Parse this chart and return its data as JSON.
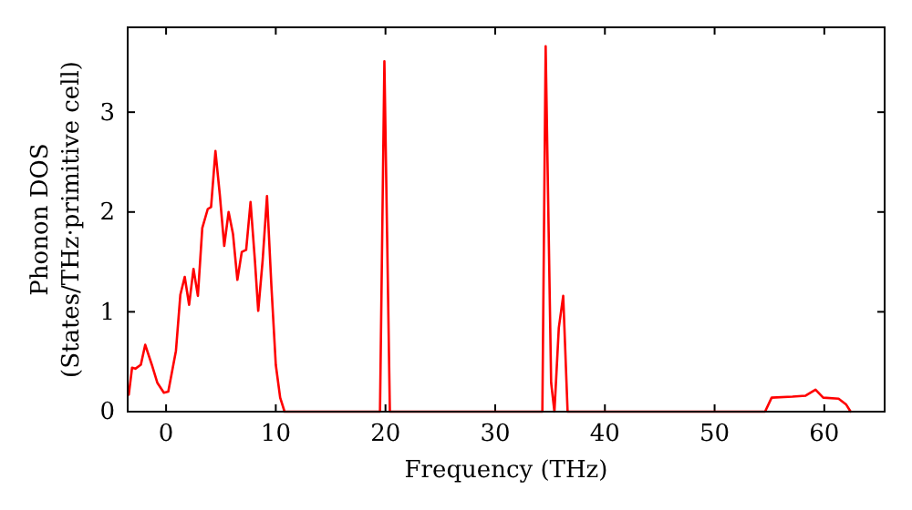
{
  "chart_data": {
    "type": "line",
    "xlabel": "Frequency (THz)",
    "ylabel": "Phonon DOS\n(States/THz·primitive cell)",
    "xlim": [
      -3.5,
      65.5
    ],
    "ylim": [
      0,
      3.85
    ],
    "xticks": [
      0,
      10,
      20,
      30,
      40,
      50,
      60
    ],
    "yticks": [
      0,
      1,
      2,
      3
    ],
    "grid": false,
    "marker": "none",
    "line_style": "solid",
    "series": [
      {
        "color": "#ff0000",
        "x": [
          -3.4,
          -3.1,
          -2.8,
          -2.3,
          -1.9,
          -1.3,
          -0.8,
          -0.2,
          0.2,
          0.9,
          1.3,
          1.7,
          2.1,
          2.5,
          2.9,
          3.3,
          3.8,
          4.1,
          4.5,
          4.9,
          5.3,
          5.7,
          6.1,
          6.5,
          6.9,
          7.3,
          7.7,
          8.1,
          8.4,
          8.8,
          9.2,
          9.6,
          10,
          10.4,
          10.8,
          19.5,
          19.9,
          20.4,
          34.3,
          34.6,
          35.1,
          35.4,
          35.8,
          36.2,
          36.6,
          54.6,
          55.2,
          57.1,
          58.3,
          59.2,
          59.9,
          61.3,
          62,
          62.4
        ],
        "values": [
          0.17,
          0.44,
          0.43,
          0.47,
          0.67,
          0.47,
          0.29,
          0.19,
          0.2,
          0.61,
          1.17,
          1.35,
          1.07,
          1.43,
          1.16,
          1.84,
          2.03,
          2.05,
          2.61,
          2.17,
          1.66,
          2.0,
          1.78,
          1.32,
          1.6,
          1.62,
          2.1,
          1.51,
          1.01,
          1.51,
          2.16,
          1.26,
          0.47,
          0.14,
          0,
          0,
          3.51,
          0,
          0,
          3.66,
          0.29,
          0,
          0.84,
          1.16,
          0,
          0,
          0.14,
          0.15,
          0.16,
          0.22,
          0.14,
          0.13,
          0.07,
          0
        ]
      }
    ]
  }
}
